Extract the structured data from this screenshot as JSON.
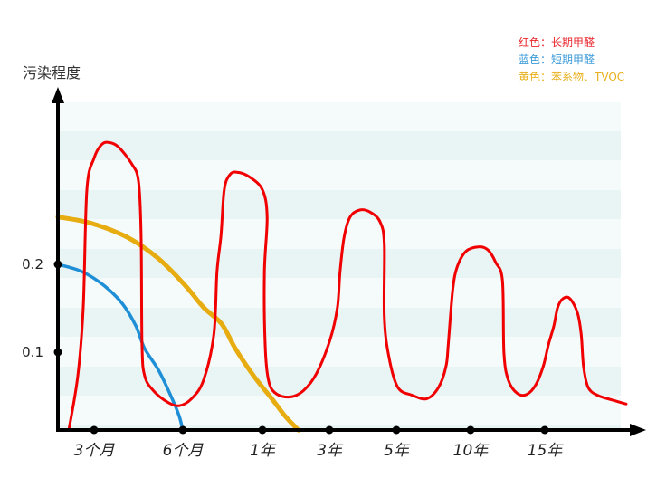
{
  "chart_data": {
    "type": "line",
    "title": "",
    "ylabel": "污染程度",
    "xlabel": "",
    "x_ticks": [
      "3个月",
      "6个月",
      "1年",
      "3年",
      "5年",
      "10年",
      "15年"
    ],
    "y_ticks": [
      0.1,
      0.2
    ],
    "y_tick_labels": [
      "0.1",
      "0.2"
    ],
    "grid": "horizontal bands",
    "legend_placement": "top-right",
    "legend": [
      {
        "text": "红色：长期甲醛",
        "color": "#e8242a"
      },
      {
        "text": "蓝色：短期甲醛",
        "color": "#3a9ad9"
      },
      {
        "text": "黄色：苯系物、TVOC",
        "color": "#e8b01c"
      }
    ],
    "series": [
      {
        "color": "#f00000",
        "points": [
          [
            0.3,
            0.011
          ],
          [
            0.55,
            0.073
          ],
          [
            0.7,
            0.151
          ],
          [
            0.8,
            0.285
          ],
          [
            1.0,
            0.321
          ],
          [
            1.08,
            0.336
          ],
          [
            1.16,
            0.339
          ],
          [
            1.27,
            0.334
          ],
          [
            1.42,
            0.315
          ],
          [
            1.5,
            0.295
          ],
          [
            1.53,
            0.233
          ],
          [
            1.54,
            0.109
          ],
          [
            1.57,
            0.073
          ],
          [
            1.67,
            0.056
          ],
          [
            1.83,
            0.043
          ],
          [
            1.96,
            0.039
          ],
          [
            2.11,
            0.047
          ],
          [
            2.26,
            0.068
          ],
          [
            2.39,
            0.12
          ],
          [
            2.43,
            0.192
          ],
          [
            2.48,
            0.233
          ],
          [
            2.52,
            0.285
          ],
          [
            2.59,
            0.302
          ],
          [
            2.68,
            0.305
          ],
          [
            2.83,
            0.3
          ],
          [
            3.0,
            0.285
          ],
          [
            3.07,
            0.254
          ],
          [
            3.03,
            0.192
          ],
          [
            3.04,
            0.109
          ],
          [
            3.09,
            0.068
          ],
          [
            3.2,
            0.053
          ],
          [
            3.41,
            0.049
          ],
          [
            3.61,
            0.056
          ],
          [
            3.81,
            0.076
          ],
          [
            4.01,
            0.114
          ],
          [
            4.12,
            0.151
          ],
          [
            4.16,
            0.192
          ],
          [
            4.22,
            0.231
          ],
          [
            4.31,
            0.254
          ],
          [
            4.46,
            0.262
          ],
          [
            4.62,
            0.259
          ],
          [
            4.76,
            0.248
          ],
          [
            4.82,
            0.223
          ],
          [
            4.82,
            0.14
          ],
          [
            4.89,
            0.094
          ],
          [
            5.02,
            0.06
          ],
          [
            5.21,
            0.051
          ],
          [
            5.41,
            0.047
          ],
          [
            5.57,
            0.06
          ],
          [
            5.67,
            0.084
          ],
          [
            5.7,
            0.109
          ],
          [
            5.76,
            0.171
          ],
          [
            5.82,
            0.197
          ],
          [
            5.94,
            0.215
          ],
          [
            6.12,
            0.22
          ],
          [
            6.24,
            0.216
          ],
          [
            6.34,
            0.202
          ],
          [
            6.43,
            0.181
          ],
          [
            6.45,
            0.099
          ],
          [
            6.51,
            0.068
          ],
          [
            6.63,
            0.053
          ],
          [
            6.76,
            0.052
          ],
          [
            6.88,
            0.063
          ],
          [
            6.98,
            0.084
          ],
          [
            7.05,
            0.109
          ],
          [
            7.12,
            0.13
          ],
          [
            7.17,
            0.151
          ],
          [
            7.24,
            0.161
          ],
          [
            7.33,
            0.161
          ],
          [
            7.43,
            0.145
          ],
          [
            7.48,
            0.12
          ],
          [
            7.51,
            0.084
          ],
          [
            7.57,
            0.06
          ],
          [
            7.69,
            0.051
          ],
          [
            7.87,
            0.046
          ],
          [
            8.07,
            0.041
          ]
        ]
      },
      {
        "color": "#1e8fd6",
        "points": [
          [
            0,
            0.2
          ],
          [
            0.65,
            0.192
          ],
          [
            1.11,
            0.176
          ],
          [
            1.32,
            0.155
          ],
          [
            1.47,
            0.13
          ],
          [
            1.57,
            0.104
          ],
          [
            1.73,
            0.079
          ],
          [
            1.88,
            0.047
          ],
          [
            1.96,
            0.027
          ],
          [
            2.0,
            0.011
          ]
        ]
      },
      {
        "color": "#e6ac10",
        "points": [
          [
            0,
            0.254
          ],
          [
            0.9,
            0.247
          ],
          [
            1.37,
            0.231
          ],
          [
            1.72,
            0.207
          ],
          [
            2.03,
            0.176
          ],
          [
            2.26,
            0.151
          ],
          [
            2.49,
            0.132
          ],
          [
            2.66,
            0.104
          ],
          [
            2.89,
            0.073
          ],
          [
            3.14,
            0.047
          ],
          [
            3.34,
            0.027
          ],
          [
            3.54,
            0.011
          ]
        ]
      }
    ]
  }
}
